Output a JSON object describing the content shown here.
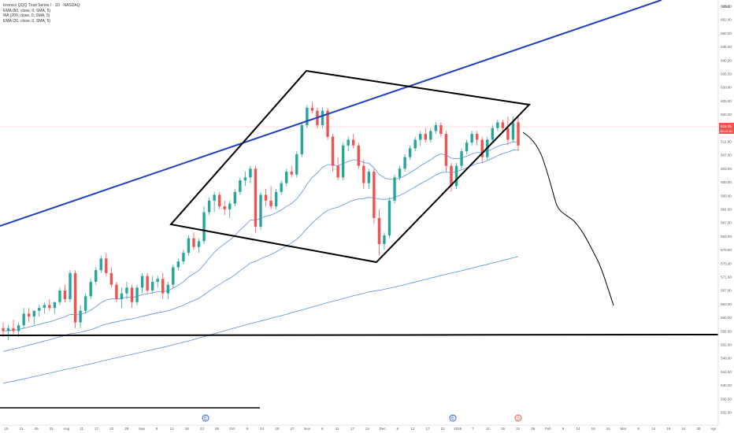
{
  "header": {
    "title": "Invesco QQQ Trust Series I · 1D · NASDAQ",
    "indicators": [
      "EMA (50, close, 0, SMA, 5)",
      "MA (200, close, 0, SMA, 5)",
      "EMA (20, close, 0, SMA, 5)"
    ],
    "currency": "USD"
  },
  "price_tag": {
    "value": "619.35",
    "countdown": "05:10:30"
  },
  "events": [
    {
      "label": "E",
      "x": "Sep 19",
      "kind": "earnings"
    },
    {
      "label": "E",
      "x": "Dec 19",
      "kind": "earnings"
    },
    {
      "label": "S",
      "x": "Jan 16",
      "kind": "split"
    }
  ],
  "colors": {
    "up": "#26a69a",
    "down": "#ef5350",
    "trend": "#1f3fc0",
    "ma": "#5b8ee6",
    "pattern": "#000000",
    "price_line": "#f7a8a8"
  },
  "chart_data": {
    "type": "candlestick",
    "y_ticks": [
      "665.00",
      "662.00",
      "650.00",
      "646.00",
      "640.00",
      "635.00",
      "630.00",
      "625.00",
      "620.00",
      "615.00",
      "611.00",
      "607.00",
      "603.00",
      "600.00",
      "595.00",
      "591.00",
      "587.00",
      "583.00",
      "579.00",
      "575.00",
      "571.00",
      "567.00",
      "563.00",
      "560.00",
      "556.00",
      "552.00",
      "548.00",
      "544.00",
      "540.00",
      "536.00",
      "532.00"
    ],
    "x_ticks": [
      "15",
      "21",
      "26",
      "31",
      "Aug",
      "11",
      "17",
      "22",
      "28",
      "Sep",
      "8",
      "12",
      "18",
      "23",
      "29",
      "Oct",
      "9",
      "14",
      "20",
      "27",
      "Nov",
      "6",
      "11",
      "17",
      "24",
      "Dec",
      "8",
      "12",
      "17",
      "22",
      "2026",
      "7",
      "12",
      "15",
      "21",
      "26",
      "Feb",
      "9",
      "14",
      "19",
      "24",
      "Mar",
      "9",
      "14",
      "19",
      "24",
      "30",
      "Apr"
    ],
    "candles": [
      {
        "o": 556,
        "h": 558,
        "l": 553,
        "c": 555
      },
      {
        "o": 555,
        "h": 557,
        "l": 552,
        "c": 556
      },
      {
        "o": 556,
        "h": 559,
        "l": 554,
        "c": 555
      },
      {
        "o": 555,
        "h": 558,
        "l": 553,
        "c": 557
      },
      {
        "o": 557,
        "h": 563,
        "l": 556,
        "c": 561
      },
      {
        "o": 561,
        "h": 563,
        "l": 558,
        "c": 560
      },
      {
        "o": 560,
        "h": 562,
        "l": 557,
        "c": 562
      },
      {
        "o": 562,
        "h": 564,
        "l": 560,
        "c": 563
      },
      {
        "o": 563,
        "h": 565,
        "l": 561,
        "c": 564
      },
      {
        "o": 564,
        "h": 566,
        "l": 562,
        "c": 563
      },
      {
        "o": 563,
        "h": 565,
        "l": 561,
        "c": 565
      },
      {
        "o": 565,
        "h": 570,
        "l": 564,
        "c": 569
      },
      {
        "o": 569,
        "h": 571,
        "l": 565,
        "c": 566
      },
      {
        "o": 566,
        "h": 576,
        "l": 565,
        "c": 575
      },
      {
        "o": 575,
        "h": 576,
        "l": 556,
        "c": 558
      },
      {
        "o": 558,
        "h": 564,
        "l": 556,
        "c": 562
      },
      {
        "o": 562,
        "h": 568,
        "l": 561,
        "c": 567
      },
      {
        "o": 567,
        "h": 573,
        "l": 566,
        "c": 572
      },
      {
        "o": 572,
        "h": 577,
        "l": 571,
        "c": 576
      },
      {
        "o": 576,
        "h": 581,
        "l": 575,
        "c": 580
      },
      {
        "o": 580,
        "h": 582,
        "l": 574,
        "c": 575
      },
      {
        "o": 575,
        "h": 577,
        "l": 570,
        "c": 571
      },
      {
        "o": 571,
        "h": 572,
        "l": 565,
        "c": 566
      },
      {
        "o": 566,
        "h": 570,
        "l": 563,
        "c": 568
      },
      {
        "o": 568,
        "h": 572,
        "l": 566,
        "c": 570
      },
      {
        "o": 570,
        "h": 571,
        "l": 563,
        "c": 565
      },
      {
        "o": 565,
        "h": 571,
        "l": 564,
        "c": 570
      },
      {
        "o": 570,
        "h": 575,
        "l": 568,
        "c": 574
      },
      {
        "o": 574,
        "h": 575,
        "l": 568,
        "c": 569
      },
      {
        "o": 569,
        "h": 574,
        "l": 568,
        "c": 572
      },
      {
        "o": 572,
        "h": 574,
        "l": 570,
        "c": 573
      },
      {
        "o": 573,
        "h": 575,
        "l": 566,
        "c": 568
      },
      {
        "o": 568,
        "h": 572,
        "l": 566,
        "c": 571
      },
      {
        "o": 571,
        "h": 578,
        "l": 570,
        "c": 577
      },
      {
        "o": 577,
        "h": 580,
        "l": 576,
        "c": 579
      },
      {
        "o": 579,
        "h": 583,
        "l": 578,
        "c": 582
      },
      {
        "o": 582,
        "h": 588,
        "l": 581,
        "c": 587
      },
      {
        "o": 587,
        "h": 589,
        "l": 583,
        "c": 584
      },
      {
        "o": 584,
        "h": 587,
        "l": 582,
        "c": 586
      },
      {
        "o": 586,
        "h": 598,
        "l": 585,
        "c": 596
      },
      {
        "o": 596,
        "h": 601,
        "l": 595,
        "c": 600
      },
      {
        "o": 600,
        "h": 603,
        "l": 596,
        "c": 602
      },
      {
        "o": 602,
        "h": 603,
        "l": 597,
        "c": 598
      },
      {
        "o": 598,
        "h": 600,
        "l": 595,
        "c": 597
      },
      {
        "o": 597,
        "h": 600,
        "l": 594,
        "c": 599
      },
      {
        "o": 599,
        "h": 604,
        "l": 598,
        "c": 603
      },
      {
        "o": 603,
        "h": 608,
        "l": 602,
        "c": 607
      },
      {
        "o": 607,
        "h": 610,
        "l": 605,
        "c": 608
      },
      {
        "o": 608,
        "h": 612,
        "l": 606,
        "c": 611
      },
      {
        "o": 611,
        "h": 612,
        "l": 589,
        "c": 591
      },
      {
        "o": 591,
        "h": 603,
        "l": 590,
        "c": 602
      },
      {
        "o": 602,
        "h": 604,
        "l": 598,
        "c": 600
      },
      {
        "o": 600,
        "h": 605,
        "l": 597,
        "c": 598
      },
      {
        "o": 598,
        "h": 604,
        "l": 597,
        "c": 603
      },
      {
        "o": 603,
        "h": 607,
        "l": 602,
        "c": 606
      },
      {
        "o": 606,
        "h": 611,
        "l": 605,
        "c": 610
      },
      {
        "o": 610,
        "h": 612,
        "l": 608,
        "c": 609
      },
      {
        "o": 609,
        "h": 617,
        "l": 608,
        "c": 616
      },
      {
        "o": 616,
        "h": 627,
        "l": 615,
        "c": 626
      },
      {
        "o": 626,
        "h": 633,
        "l": 625,
        "c": 632
      },
      {
        "o": 632,
        "h": 634,
        "l": 630,
        "c": 631
      },
      {
        "o": 631,
        "h": 632,
        "l": 625,
        "c": 626
      },
      {
        "o": 626,
        "h": 632,
        "l": 625,
        "c": 631
      },
      {
        "o": 631,
        "h": 632,
        "l": 621,
        "c": 622
      },
      {
        "o": 622,
        "h": 623,
        "l": 610,
        "c": 612
      },
      {
        "o": 612,
        "h": 615,
        "l": 607,
        "c": 608
      },
      {
        "o": 608,
        "h": 620,
        "l": 607,
        "c": 619
      },
      {
        "o": 619,
        "h": 622,
        "l": 617,
        "c": 621
      },
      {
        "o": 621,
        "h": 623,
        "l": 618,
        "c": 619
      },
      {
        "o": 619,
        "h": 620,
        "l": 611,
        "c": 612
      },
      {
        "o": 612,
        "h": 614,
        "l": 604,
        "c": 606
      },
      {
        "o": 606,
        "h": 611,
        "l": 604,
        "c": 610
      },
      {
        "o": 610,
        "h": 611,
        "l": 592,
        "c": 594
      },
      {
        "o": 594,
        "h": 597,
        "l": 581,
        "c": 585
      },
      {
        "o": 585,
        "h": 589,
        "l": 583,
        "c": 588
      },
      {
        "o": 588,
        "h": 601,
        "l": 587,
        "c": 600
      },
      {
        "o": 600,
        "h": 609,
        "l": 599,
        "c": 608
      },
      {
        "o": 608,
        "h": 612,
        "l": 607,
        "c": 611
      },
      {
        "o": 611,
        "h": 616,
        "l": 610,
        "c": 615
      },
      {
        "o": 615,
        "h": 619,
        "l": 614,
        "c": 618
      },
      {
        "o": 618,
        "h": 622,
        "l": 617,
        "c": 621
      },
      {
        "o": 621,
        "h": 624,
        "l": 619,
        "c": 623
      },
      {
        "o": 623,
        "h": 625,
        "l": 620,
        "c": 621
      },
      {
        "o": 621,
        "h": 625,
        "l": 620,
        "c": 624
      },
      {
        "o": 624,
        "h": 627,
        "l": 623,
        "c": 626
      },
      {
        "o": 626,
        "h": 627,
        "l": 622,
        "c": 623
      },
      {
        "o": 623,
        "h": 624,
        "l": 610,
        "c": 612
      },
      {
        "o": 612,
        "h": 613,
        "l": 603,
        "c": 605
      },
      {
        "o": 605,
        "h": 613,
        "l": 604,
        "c": 612
      },
      {
        "o": 612,
        "h": 618,
        "l": 611,
        "c": 617
      },
      {
        "o": 617,
        "h": 621,
        "l": 616,
        "c": 620
      },
      {
        "o": 620,
        "h": 624,
        "l": 619,
        "c": 623
      },
      {
        "o": 623,
        "h": 624,
        "l": 619,
        "c": 621
      },
      {
        "o": 621,
        "h": 622,
        "l": 613,
        "c": 615
      },
      {
        "o": 615,
        "h": 622,
        "l": 614,
        "c": 621
      },
      {
        "o": 621,
        "h": 626,
        "l": 620,
        "c": 625
      },
      {
        "o": 625,
        "h": 628,
        "l": 624,
        "c": 627
      },
      {
        "o": 627,
        "h": 628,
        "l": 624,
        "c": 625
      },
      {
        "o": 625,
        "h": 629,
        "l": 619,
        "c": 621
      },
      {
        "o": 621,
        "h": 629,
        "l": 620,
        "c": 627
      },
      {
        "o": 627,
        "h": 629,
        "l": 617,
        "c": 619
      }
    ],
    "series": [
      {
        "values": [
          555,
          555.2,
          555.3,
          555.5,
          556,
          556.4,
          556.8,
          557.3,
          557.8,
          558.2,
          558.7,
          559.4,
          559.9,
          560.8,
          560.6,
          560.7,
          561.3,
          562.2,
          563.4,
          564.8,
          565.7,
          566.1,
          566.1,
          566.3,
          566.7,
          566.6,
          566.9,
          567.6,
          567.8,
          568.2,
          568.6,
          568.6,
          568.9,
          569.8,
          570.8,
          572,
          573.6,
          574.8,
          575.9,
          577.9,
          580.1,
          582.2,
          583.8,
          585.1,
          586.4,
          588,
          589.8,
          591.5,
          593.3,
          593.2,
          594,
          594.6,
          595,
          595.8,
          596.8,
          598,
          599,
          600.6,
          602.9,
          605.6,
          608,
          609.5,
          611.5,
          612.4,
          612.4,
          612,
          612.7,
          613.5,
          614.1,
          613.9,
          613.1,
          612.9,
          611.3,
          609,
          607.9,
          607.3,
          607.4,
          607.7,
          608.6,
          609.6,
          610.7,
          612,
          613,
          614.1,
          615.3,
          616.1,
          615.7,
          614.6,
          614.4,
          614.7,
          615.3,
          616.1,
          616.6,
          616.5,
          617,
          617.8,
          618.7,
          619.3,
          619.6,
          620.3,
          620.2
        ]
      },
      {
        "values": [
          537,
          537.4,
          537.7,
          538.1,
          538.5,
          538.9,
          539.3,
          539.7,
          540.1,
          540.5,
          540.9,
          541.3,
          541.7,
          542.1,
          542.5,
          542.9,
          543.3,
          543.7,
          544.1,
          544.6,
          545,
          545.4,
          545.8,
          546.2,
          546.6,
          547,
          547.4,
          547.8,
          548.2,
          548.6,
          549,
          549.4,
          549.8,
          550.3,
          550.7,
          551.2,
          551.6,
          552.1,
          552.6,
          553.1,
          553.6,
          554.1,
          554.6,
          555.1,
          555.6,
          556.1,
          556.6,
          557.1,
          557.6,
          558,
          558.5,
          558.9,
          559.4,
          559.9,
          560.3,
          560.8,
          561.3,
          561.8,
          562.3,
          562.8,
          563.3,
          563.8,
          564.3,
          564.8,
          565.3,
          565.7,
          566.2,
          566.7,
          567.2,
          567.6,
          568,
          568.5,
          568.8,
          569.1,
          569.4,
          569.8,
          570.2,
          570.6,
          571,
          571.5,
          571.9,
          572.4,
          572.8,
          573.3,
          573.7,
          574.2,
          574.6,
          575,
          575.4,
          575.8,
          576.3,
          576.7,
          577.2,
          577.6,
          578,
          578.5,
          578.9,
          579.4,
          579.8,
          580.3,
          580.7
        ]
      },
      {
        "values": [
          548,
          548.4,
          548.8,
          549.2,
          549.7,
          550.2,
          550.6,
          551.1,
          551.6,
          552,
          552.5,
          553,
          553.5,
          554.1,
          554.3,
          554.6,
          555,
          555.5,
          556.1,
          556.8,
          557.4,
          557.9,
          558.2,
          558.6,
          559,
          559.2,
          559.6,
          560.1,
          560.5,
          560.9,
          561.3,
          561.6,
          562,
          562.6,
          563.2,
          563.9,
          564.8,
          565.5,
          566.3,
          567.5,
          568.8,
          570,
          571.1,
          572.2,
          573.2,
          574.4,
          575.8,
          577.1,
          578.5,
          579,
          579.9,
          580.7,
          581.4,
          582.3,
          583.3,
          584.4,
          585.4,
          586.7,
          588.4,
          590.4,
          592.3,
          593.8,
          595.4,
          596.6,
          597.3,
          597.7,
          598.5,
          599.4,
          600.1,
          600.5,
          600.7,
          601.1,
          600.9,
          600.5,
          600.4,
          600.6,
          601.2,
          601.8,
          602.7,
          603.7,
          604.7,
          605.8,
          606.7,
          607.7,
          608.8,
          609.6,
          609.8,
          609.7,
          610,
          610.6,
          611.3,
          612.1,
          612.8,
          613.1,
          613.8,
          614.6,
          615.5,
          616.2,
          616.7,
          617.4,
          617.6
        ]
      }
    ],
    "ylim": [
      528,
      667
    ]
  }
}
